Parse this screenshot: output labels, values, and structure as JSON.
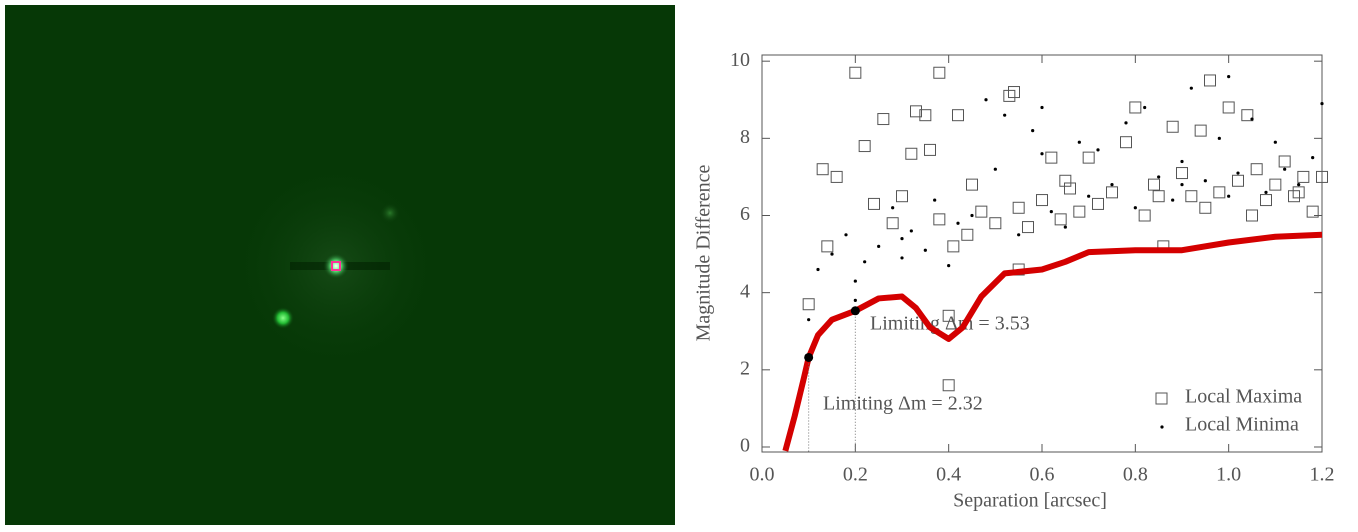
{
  "chart_data": {
    "type": "scatter",
    "xlabel": "Separation  [arcsec]",
    "ylabel": "Magnitude Difference",
    "xlim": [
      0,
      1.2
    ],
    "ylim": [
      -0.13,
      10.16
    ],
    "xticks": [
      {
        "value": 0,
        "label": "0.0"
      },
      0.2,
      0.4,
      0.6,
      0.8,
      {
        "value": 1,
        "label": "1.0"
      },
      1.2
    ],
    "yticks": [
      0,
      2,
      4,
      6,
      8,
      10
    ],
    "series": [
      {
        "name": "Local Maxima",
        "marker": "square",
        "color": "#555555",
        "x": [
          0.1,
          0.13,
          0.14,
          0.16,
          0.2,
          0.22,
          0.24,
          0.26,
          0.28,
          0.3,
          0.32,
          0.33,
          0.35,
          0.36,
          0.38,
          0.38,
          0.4,
          0.41,
          0.42,
          0.44,
          0.45,
          0.47,
          0.5,
          0.53,
          0.54,
          0.55,
          0.57,
          0.6,
          0.62,
          0.64,
          0.66,
          0.68,
          0.7,
          0.72,
          0.75,
          0.78,
          0.8,
          0.82,
          0.84,
          0.86,
          0.88,
          0.9,
          0.92,
          0.94,
          0.96,
          0.98,
          1.0,
          1.02,
          1.04,
          1.06,
          1.08,
          1.1,
          1.12,
          1.14,
          1.16,
          1.18,
          1.2,
          0.4,
          0.55,
          0.65,
          0.85,
          0.95,
          1.05,
          1.15
        ],
        "values": [
          3.7,
          7.2,
          5.2,
          7.0,
          9.7,
          7.8,
          6.3,
          8.5,
          5.8,
          6.5,
          7.6,
          8.7,
          8.6,
          7.7,
          5.9,
          9.7,
          1.6,
          5.2,
          8.6,
          5.5,
          6.8,
          6.1,
          5.8,
          9.1,
          9.2,
          6.2,
          5.7,
          6.4,
          7.5,
          5.9,
          6.7,
          6.1,
          7.5,
          6.3,
          6.6,
          7.9,
          8.8,
          6.0,
          6.8,
          5.2,
          8.3,
          7.1,
          6.5,
          8.2,
          9.5,
          6.6,
          8.8,
          6.9,
          8.6,
          7.2,
          6.4,
          6.8,
          7.4,
          6.5,
          7.0,
          6.1,
          7.0,
          3.4,
          4.6,
          6.9,
          6.5,
          6.2,
          6.0,
          6.6
        ]
      },
      {
        "name": "Local Minima",
        "marker": "dot",
        "color": "#000000",
        "x": [
          0.1,
          0.12,
          0.15,
          0.18,
          0.2,
          0.2,
          0.22,
          0.25,
          0.28,
          0.3,
          0.32,
          0.35,
          0.37,
          0.4,
          0.42,
          0.45,
          0.48,
          0.5,
          0.52,
          0.55,
          0.58,
          0.6,
          0.62,
          0.65,
          0.68,
          0.7,
          0.72,
          0.75,
          0.78,
          0.8,
          0.82,
          0.85,
          0.88,
          0.9,
          0.92,
          0.95,
          0.98,
          1.0,
          1.02,
          1.05,
          1.08,
          1.1,
          1.12,
          1.15,
          1.18,
          1.2,
          0.6,
          0.9,
          1.0,
          0.3
        ],
        "values": [
          3.3,
          4.6,
          5.0,
          5.5,
          3.8,
          4.3,
          4.8,
          5.2,
          6.2,
          4.9,
          5.6,
          5.1,
          6.4,
          4.7,
          5.8,
          6.0,
          9.0,
          7.2,
          8.6,
          5.5,
          8.2,
          7.6,
          6.1,
          5.7,
          7.9,
          6.5,
          7.7,
          6.8,
          8.4,
          6.2,
          8.8,
          7.0,
          6.4,
          7.4,
          9.3,
          6.9,
          8.0,
          9.6,
          7.1,
          8.5,
          6.6,
          7.9,
          7.2,
          6.8,
          7.5,
          8.9,
          8.8,
          6.8,
          6.5,
          5.4
        ]
      }
    ],
    "curve": {
      "color": "#d40000",
      "x": [
        0.05,
        0.07,
        0.09,
        0.1,
        0.12,
        0.15,
        0.2,
        0.25,
        0.3,
        0.33,
        0.36,
        0.4,
        0.43,
        0.47,
        0.52,
        0.6,
        0.65,
        0.7,
        0.8,
        0.9,
        1.0,
        1.1,
        1.2
      ],
      "values": [
        -0.1,
        0.8,
        1.8,
        2.32,
        2.9,
        3.3,
        3.53,
        3.85,
        3.9,
        3.6,
        3.1,
        2.8,
        3.1,
        3.9,
        4.5,
        4.6,
        4.8,
        5.05,
        5.1,
        5.1,
        5.3,
        5.45,
        5.5
      ]
    },
    "limit_points": {
      "x": [
        0.1,
        0.2
      ],
      "values": [
        2.32,
        3.53
      ]
    },
    "annotations": [
      "Limiting Δm = 3.53",
      "Limiting Δm = 2.32"
    ]
  }
}
